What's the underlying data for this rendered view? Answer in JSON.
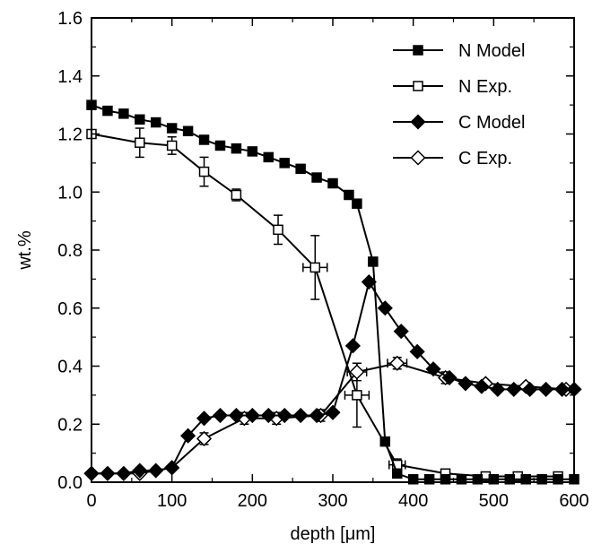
{
  "chart_data": {
    "type": "line",
    "xlabel": "depth [μm]",
    "ylabel": "wt.%",
    "xlim": [
      0,
      600
    ],
    "ylim": [
      0,
      1.6
    ],
    "x_ticks": [
      0,
      100,
      200,
      300,
      400,
      500,
      600
    ],
    "x_tick_labels": [
      "0",
      "100",
      "200",
      "300",
      "400",
      "500",
      "600"
    ],
    "y_ticks": [
      0.0,
      0.2,
      0.4,
      0.6,
      0.8,
      1.0,
      1.2,
      1.4,
      1.6
    ],
    "y_tick_labels": [
      "0.0",
      "0.2",
      "0.4",
      "0.6",
      "0.8",
      "1.0",
      "1.2",
      "1.4",
      "1.6"
    ],
    "grid": false,
    "legend_position": "top-right",
    "series": [
      {
        "name": "N Model",
        "marker": "square",
        "filled": true,
        "color": "#000000",
        "points": [
          [
            0,
            1.3
          ],
          [
            20,
            1.28
          ],
          [
            40,
            1.27
          ],
          [
            60,
            1.25
          ],
          [
            80,
            1.24
          ],
          [
            100,
            1.22
          ],
          [
            120,
            1.21
          ],
          [
            140,
            1.18
          ],
          [
            160,
            1.16
          ],
          [
            180,
            1.15
          ],
          [
            200,
            1.14
          ],
          [
            220,
            1.12
          ],
          [
            240,
            1.1
          ],
          [
            260,
            1.08
          ],
          [
            280,
            1.05
          ],
          [
            300,
            1.03
          ],
          [
            320,
            0.99
          ],
          [
            330,
            0.96
          ],
          [
            350,
            0.76
          ],
          [
            365,
            0.14
          ],
          [
            380,
            0.03
          ],
          [
            400,
            0.01
          ],
          [
            420,
            0.01
          ],
          [
            440,
            0.01
          ],
          [
            460,
            0.01
          ],
          [
            480,
            0.01
          ],
          [
            500,
            0.01
          ],
          [
            520,
            0.01
          ],
          [
            540,
            0.01
          ],
          [
            560,
            0.01
          ],
          [
            580,
            0.01
          ],
          [
            600,
            0.01
          ]
        ]
      },
      {
        "name": "N Exp.",
        "marker": "square",
        "filled": false,
        "color": "#000000",
        "points": [
          [
            0,
            1.2
          ],
          [
            60,
            1.17
          ],
          [
            100,
            1.16
          ],
          [
            140,
            1.07
          ],
          [
            180,
            0.99
          ],
          [
            232,
            0.87
          ],
          [
            278,
            0.74
          ],
          [
            330,
            0.3
          ],
          [
            380,
            0.06
          ],
          [
            440,
            0.03
          ],
          [
            490,
            0.02
          ],
          [
            530,
            0.02
          ],
          [
            580,
            0.02
          ]
        ],
        "error_y": [
          0.0,
          0.05,
          0.03,
          0.05,
          0.02,
          0.05,
          0.11,
          0.11,
          0.02,
          0.0,
          0.0,
          0.0,
          0.0
        ],
        "error_x": [
          0,
          0,
          0,
          0,
          0,
          0,
          15,
          15,
          10,
          0,
          0,
          0,
          0
        ]
      },
      {
        "name": "C Model",
        "marker": "diamond",
        "filled": true,
        "color": "#000000",
        "points": [
          [
            0,
            0.03
          ],
          [
            20,
            0.03
          ],
          [
            40,
            0.03
          ],
          [
            60,
            0.04
          ],
          [
            80,
            0.04
          ],
          [
            100,
            0.05
          ],
          [
            120,
            0.16
          ],
          [
            140,
            0.22
          ],
          [
            160,
            0.23
          ],
          [
            180,
            0.23
          ],
          [
            200,
            0.23
          ],
          [
            220,
            0.23
          ],
          [
            240,
            0.23
          ],
          [
            260,
            0.23
          ],
          [
            280,
            0.23
          ],
          [
            300,
            0.24
          ],
          [
            325,
            0.47
          ],
          [
            345,
            0.69
          ],
          [
            365,
            0.6
          ],
          [
            385,
            0.52
          ],
          [
            405,
            0.45
          ],
          [
            425,
            0.39
          ],
          [
            445,
            0.36
          ],
          [
            465,
            0.34
          ],
          [
            485,
            0.33
          ],
          [
            505,
            0.32
          ],
          [
            525,
            0.32
          ],
          [
            545,
            0.32
          ],
          [
            565,
            0.32
          ],
          [
            585,
            0.32
          ],
          [
            600,
            0.32
          ]
        ]
      },
      {
        "name": "C Exp.",
        "marker": "diamond",
        "filled": false,
        "color": "#000000",
        "points": [
          [
            0,
            0.03
          ],
          [
            60,
            0.03
          ],
          [
            100,
            0.05
          ],
          [
            140,
            0.15
          ],
          [
            190,
            0.22
          ],
          [
            230,
            0.22
          ],
          [
            285,
            0.23
          ],
          [
            330,
            0.38
          ],
          [
            380,
            0.41
          ],
          [
            440,
            0.36
          ],
          [
            490,
            0.34
          ],
          [
            540,
            0.33
          ],
          [
            590,
            0.32
          ]
        ],
        "error_y": [
          0,
          0,
          0,
          0.02,
          0.02,
          0.02,
          0.02,
          0.03,
          0.02,
          0.02,
          0,
          0,
          0
        ],
        "error_x": [
          0,
          0,
          0,
          0,
          0,
          0,
          0,
          12,
          12,
          0,
          0,
          0,
          0
        ]
      }
    ]
  }
}
